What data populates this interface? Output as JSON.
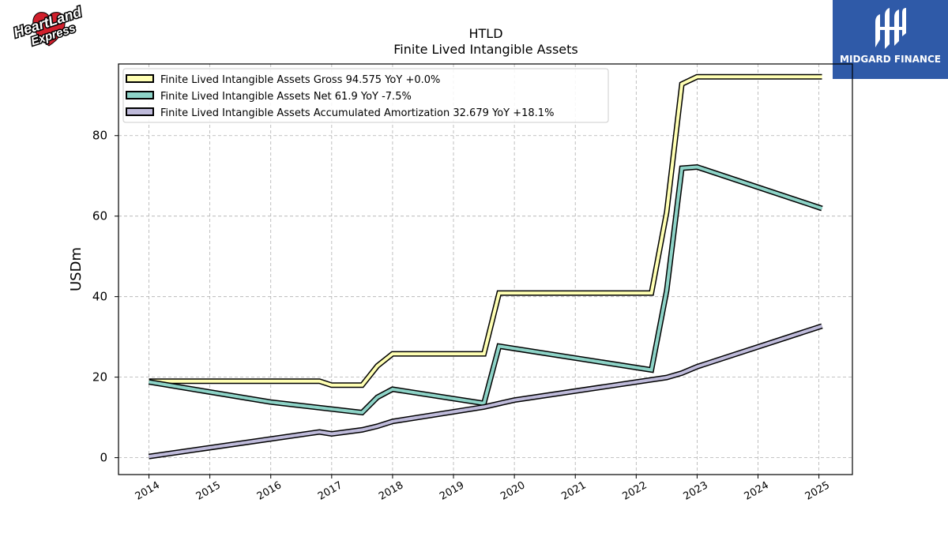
{
  "branding": {
    "left_logo_text_top": "HeartLand",
    "left_logo_text_bottom": "Express",
    "right_logo_text": "MIDGARD FINANCE",
    "right_logo_color": "#2f5aa8"
  },
  "chart_data": {
    "type": "line",
    "title": "HTLD",
    "subtitle": "Finite Lived Intangible Assets",
    "xlabel": "",
    "ylabel": "USDm",
    "xlim": [
      2013.5,
      2025.55
    ],
    "ylim": [
      -4.2,
      97.8
    ],
    "x_ticks": [
      "2014",
      "2015",
      "2016",
      "2017",
      "2018",
      "2019",
      "2020",
      "2021",
      "2022",
      "2023",
      "2024",
      "2025"
    ],
    "y_ticks": [
      0,
      20,
      40,
      60,
      80
    ],
    "grid": true,
    "legend_position": "top-left",
    "series": [
      {
        "name": "Finite Lived Intangible Assets Gross  94.575 YoY +0.0%",
        "color": "#ffffb3",
        "points": [
          [
            2014.0,
            19.0
          ],
          [
            2016.8,
            19.0
          ],
          [
            2017.0,
            18.0
          ],
          [
            2017.5,
            18.0
          ],
          [
            2017.75,
            22.8
          ],
          [
            2018.0,
            25.8
          ],
          [
            2019.5,
            25.8
          ],
          [
            2019.75,
            40.9
          ],
          [
            2022.25,
            40.9
          ],
          [
            2022.5,
            61.0
          ],
          [
            2022.75,
            92.8
          ],
          [
            2023.0,
            94.6
          ],
          [
            2025.05,
            94.6
          ]
        ]
      },
      {
        "name": "Finite Lived Intangible Assets Net  61.9 YoY -7.5%",
        "color": "#8dd3c7",
        "points": [
          [
            2014.0,
            18.8
          ],
          [
            2016.0,
            13.8
          ],
          [
            2017.5,
            11.2
          ],
          [
            2017.75,
            15.0
          ],
          [
            2018.0,
            17.0
          ],
          [
            2019.5,
            13.5
          ],
          [
            2019.75,
            27.7
          ],
          [
            2022.25,
            21.8
          ],
          [
            2022.5,
            41.5
          ],
          [
            2022.75,
            71.9
          ],
          [
            2023.0,
            72.2
          ],
          [
            2025.05,
            61.9
          ]
        ]
      },
      {
        "name": "Finite Lived Intangible Assets Accumulated Amortization  32.679 YoY +18.1%",
        "color": "#bebada",
        "points": [
          [
            2014.0,
            0.3
          ],
          [
            2016.8,
            6.4
          ],
          [
            2017.0,
            5.9
          ],
          [
            2017.5,
            6.9
          ],
          [
            2017.75,
            7.8
          ],
          [
            2018.0,
            9.0
          ],
          [
            2019.5,
            12.6
          ],
          [
            2020.0,
            14.3
          ],
          [
            2022.5,
            19.9
          ],
          [
            2022.75,
            21.0
          ],
          [
            2023.0,
            22.6
          ],
          [
            2025.05,
            32.7
          ]
        ]
      }
    ]
  }
}
